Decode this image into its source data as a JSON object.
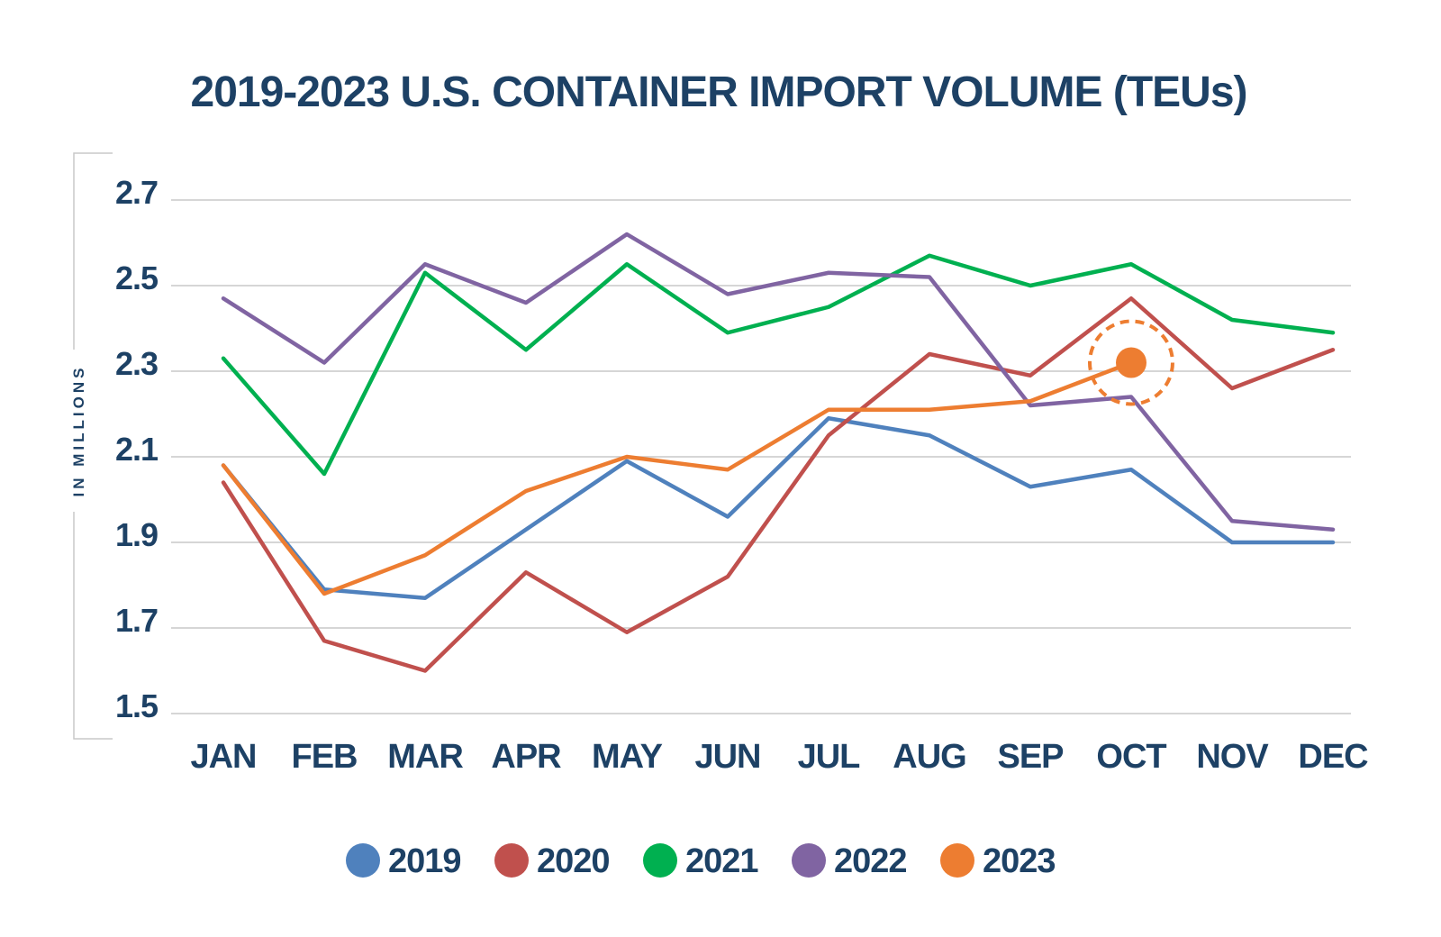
{
  "chart_data": {
    "type": "line",
    "title": "2019-2023 U.S. CONTAINER IMPORT VOLUME (TEUs)",
    "ylabel": "IN MILLIONS",
    "xlabel": "",
    "categories": [
      "JAN",
      "FEB",
      "MAR",
      "APR",
      "MAY",
      "JUN",
      "JUL",
      "AUG",
      "SEP",
      "OCT",
      "NOV",
      "DEC"
    ],
    "yticks": [
      "2.7",
      "2.5",
      "2.3",
      "2.1",
      "1.9",
      "1.7",
      "1.5"
    ],
    "ylim": [
      1.5,
      2.7
    ],
    "grid": true,
    "legend_position": "bottom",
    "series": [
      {
        "name": "2019",
        "color": "#4f81bd",
        "values": [
          2.08,
          1.79,
          1.77,
          1.93,
          2.09,
          1.96,
          2.19,
          2.15,
          2.03,
          2.07,
          1.9,
          1.9
        ]
      },
      {
        "name": "2020",
        "color": "#c0504d",
        "values": [
          2.04,
          1.67,
          1.6,
          1.83,
          1.69,
          1.82,
          2.15,
          2.34,
          2.29,
          2.47,
          2.26,
          2.35
        ]
      },
      {
        "name": "2021",
        "color": "#00b050",
        "values": [
          2.33,
          2.06,
          2.53,
          2.35,
          2.55,
          2.39,
          2.45,
          2.57,
          2.5,
          2.55,
          2.42,
          2.39
        ]
      },
      {
        "name": "2022",
        "color": "#8064a2",
        "values": [
          2.47,
          2.32,
          2.55,
          2.46,
          2.62,
          2.48,
          2.53,
          2.52,
          2.22,
          2.24,
          1.95,
          1.93
        ]
      },
      {
        "name": "2023",
        "color": "#ed7d31",
        "values": [
          2.08,
          1.78,
          1.87,
          2.02,
          2.1,
          2.07,
          2.21,
          2.21,
          2.23,
          2.32,
          null,
          null
        ]
      }
    ],
    "highlight": {
      "series": "2023",
      "category": "OCT"
    }
  }
}
